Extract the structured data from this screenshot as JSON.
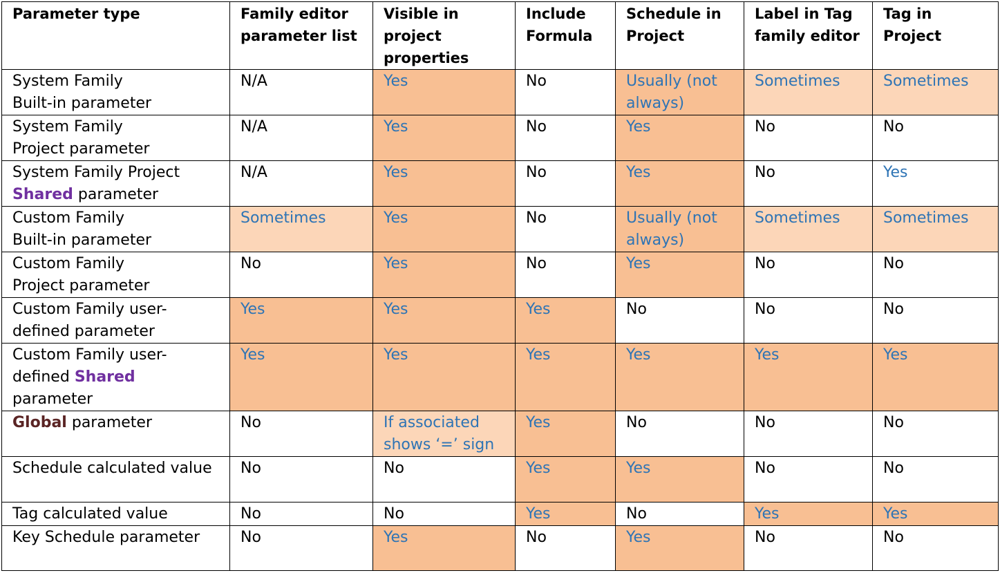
{
  "headers": [
    "Parameter type",
    "Family editor parameter list",
    "Visible in project properties",
    "Include Formula",
    "Schedule in Project",
    "Label in Tag family editor",
    "Tag in Project"
  ],
  "rows": [
    {
      "type": [
        "System Family",
        "Built-in parameter"
      ],
      "cells": [
        "N/A",
        "Yes",
        "No",
        "Usually (not always)",
        "Sometimes",
        "Sometimes"
      ]
    },
    {
      "type": [
        "System Family",
        "Project parameter"
      ],
      "cells": [
        "N/A",
        "Yes",
        "No",
        "Yes",
        "No",
        "No"
      ]
    },
    {
      "type": [
        "System Family Project",
        "Shared",
        "parameter"
      ],
      "cells": [
        "N/A",
        "Yes",
        "No",
        "Yes",
        "No",
        "Yes"
      ]
    },
    {
      "type": [
        "Custom Family",
        "Built-in parameter"
      ],
      "cells": [
        "Sometimes",
        "Yes",
        "No",
        "Usually (not always)",
        "Sometimes",
        "Sometimes"
      ]
    },
    {
      "type": [
        "Custom Family",
        "Project parameter"
      ],
      "cells": [
        "No",
        "Yes",
        "No",
        "Yes",
        "No",
        "No"
      ]
    },
    {
      "type": [
        "Custom Family user-defined parameter"
      ],
      "cells": [
        "Yes",
        "Yes",
        "Yes",
        "No",
        "No",
        "No"
      ]
    },
    {
      "type": [
        "Custom Family user-defined",
        "Shared",
        "parameter"
      ],
      "cells": [
        "Yes",
        "Yes",
        "Yes",
        "Yes",
        "Yes",
        "Yes"
      ]
    },
    {
      "type": [
        "Global",
        "parameter"
      ],
      "cells": [
        "No",
        "If associated shows ‘=’ sign",
        "Yes",
        "No",
        "No",
        "No"
      ]
    },
    {
      "type": [
        "Schedule calculated value"
      ],
      "cells": [
        "No",
        "No",
        "Yes",
        "Yes",
        "No",
        "No"
      ]
    },
    {
      "type": [
        "Tag calculated value"
      ],
      "cells": [
        "No",
        "No",
        "Yes",
        "No",
        "Yes",
        "Yes"
      ]
    },
    {
      "type": [
        "Key Schedule parameter"
      ],
      "cells": [
        "No",
        "Yes",
        "No",
        "Yes",
        "No",
        "No"
      ]
    }
  ],
  "colors": {
    "highlight_dark": "#f8bf93",
    "highlight_light": "#fcd6b8",
    "value_blue": "#2e74b5",
    "shared_purple": "#7030a0",
    "global_brown": "#5a2424"
  }
}
